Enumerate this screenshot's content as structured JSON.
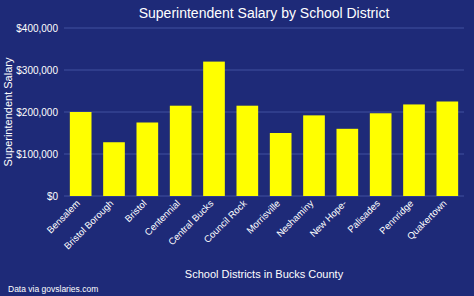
{
  "chart_data": {
    "type": "bar",
    "title": "Superintendent Salary by School District",
    "xlabel": "School Districts in Bucks County",
    "ylabel": "Superintendent Salary",
    "footnote": "Data via govslaries.com",
    "categories": [
      "Bensalem",
      "Bristol Borough",
      "Bristol",
      "Centennial",
      "Central Bucks",
      "Council Rock",
      "Morrisville",
      "Neshaminy",
      "New Hope-",
      "Palisades",
      "Pennridge",
      "Quakertown"
    ],
    "values": [
      200000,
      128000,
      175000,
      215000,
      320000,
      215000,
      150000,
      192000,
      160000,
      197000,
      218000,
      225000
    ],
    "color": "#FFFF00",
    "ylim": [
      0,
      400000
    ],
    "yticks": [
      {
        "value": 0,
        "label": "$0"
      },
      {
        "value": 100000,
        "label": "$100,000"
      },
      {
        "value": 200000,
        "label": "$200,000"
      },
      {
        "value": 300000,
        "label": "$300,000"
      },
      {
        "value": 400000,
        "label": "$400,000"
      }
    ],
    "grid": true
  }
}
